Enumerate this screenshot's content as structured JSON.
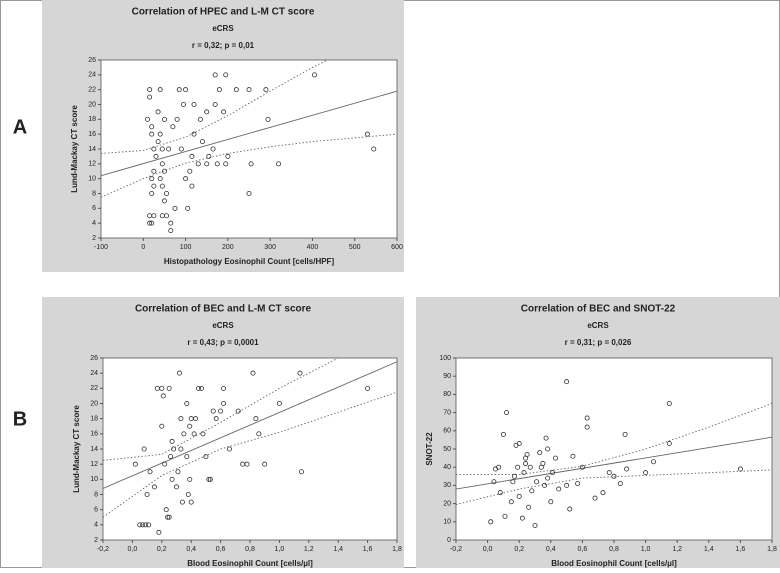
{
  "panel_labels": [
    "A",
    "B"
  ],
  "chart_data": [
    {
      "type": "scatter",
      "title": "Correlation of HPEC and L-M CT score",
      "subtitle": "eCRS",
      "annotation": "r = 0,32; p = 0,01",
      "x_label": "Histopathology Eosinophil Count [cells/HPF]",
      "y_label": "Lund-Mackay CT score",
      "color": "#333333",
      "x": [
        10,
        15,
        15,
        20,
        20,
        25,
        25,
        20,
        25,
        20,
        15,
        15,
        20,
        25,
        30,
        35,
        35,
        40,
        40,
        45,
        45,
        50,
        45,
        50,
        45,
        55,
        55,
        40,
        50,
        60,
        65,
        65,
        70,
        75,
        80,
        85,
        90,
        95,
        100,
        100,
        105,
        110,
        115,
        115,
        120,
        120,
        130,
        135,
        140,
        150,
        150,
        155,
        165,
        170,
        170,
        175,
        180,
        190,
        195,
        195,
        200,
        220,
        250,
        250,
        255,
        290,
        295,
        320,
        405,
        530,
        545
      ],
      "values": [
        18,
        21,
        22,
        17,
        16,
        14,
        11,
        10,
        9,
        8,
        5,
        4,
        4,
        5,
        13,
        15,
        19,
        16,
        22,
        12,
        14,
        18,
        9,
        7,
        5,
        5,
        8,
        10,
        11,
        14,
        3,
        4,
        17,
        6,
        18,
        22,
        14,
        20,
        22,
        10,
        6,
        11,
        9,
        13,
        16,
        20,
        12,
        18,
        15,
        19,
        12,
        13,
        14,
        24,
        20,
        12,
        22,
        19,
        24,
        12,
        13,
        22,
        22,
        8,
        12,
        22,
        18,
        12,
        24,
        16,
        14
      ],
      "fit": {
        "x": [
          -100,
          600
        ],
        "values": [
          10.4,
          21.8
        ]
      },
      "ci_upper": {
        "x": [
          -100,
          0,
          100,
          200,
          300,
          400,
          470
        ],
        "values": [
          13.4,
          13.8,
          15.6,
          18.5,
          21.8,
          25,
          27
        ]
      },
      "ci_lower": {
        "x": [
          -100,
          0,
          100,
          200,
          300,
          400,
          600
        ],
        "values": [
          7.5,
          10,
          12.1,
          13.4,
          14.3,
          15,
          16
        ]
      },
      "xlim": [
        -100,
        600
      ],
      "xticks": [
        -100,
        0,
        100,
        200,
        300,
        400,
        500,
        600
      ],
      "ylim": [
        2,
        26
      ],
      "yticks": [
        2,
        4,
        6,
        8,
        10,
        12,
        14,
        16,
        18,
        20,
        22,
        24,
        26
      ]
    },
    {
      "type": "scatter",
      "title": "Correlation of BEC and L-M CT score",
      "subtitle": "eCRS",
      "annotation": "r = 0,43; p = 0,0001",
      "x_label": "Blood Eosinophil Count [cells/µl]",
      "y_label": "Lund-Mackay CT score",
      "color": "#333333",
      "x": [
        0.02,
        0.05,
        0.07,
        0.09,
        0.11,
        0.08,
        0.1,
        0.12,
        0.15,
        0.17,
        0.18,
        0.2,
        0.2,
        0.21,
        0.22,
        0.23,
        0.24,
        0.25,
        0.26,
        0.27,
        0.27,
        0.25,
        0.28,
        0.3,
        0.31,
        0.32,
        0.33,
        0.33,
        0.34,
        0.35,
        0.37,
        0.37,
        0.38,
        0.39,
        0.39,
        0.4,
        0.4,
        0.42,
        0.43,
        0.45,
        0.47,
        0.48,
        0.5,
        0.52,
        0.53,
        0.55,
        0.57,
        0.6,
        0.62,
        0.62,
        0.66,
        0.72,
        0.75,
        0.78,
        0.82,
        0.84,
        0.86,
        0.9,
        1.0,
        1.14,
        1.15,
        1.6
      ],
      "values": [
        12,
        4,
        4,
        4,
        4,
        14,
        8,
        11,
        9,
        22,
        3,
        22,
        17,
        21,
        12,
        6,
        5,
        5,
        13,
        15,
        10,
        22,
        14,
        9,
        11,
        24,
        18,
        14,
        7,
        16,
        13,
        20,
        8,
        10,
        17,
        18,
        7,
        16,
        18,
        22,
        22,
        16,
        13,
        10,
        10,
        19,
        18,
        19,
        20,
        22,
        14,
        19,
        12,
        12,
        24,
        18,
        16,
        12,
        20,
        24,
        11,
        22
      ],
      "fit": {
        "x": [
          -0.2,
          1.8
        ],
        "values": [
          8.8,
          25.5
        ]
      },
      "ci_upper": {
        "x": [
          -0.2,
          0.2,
          0.6,
          1.0,
          1.4
        ],
        "values": [
          12.5,
          13.3,
          17.5,
          22,
          26
        ]
      },
      "ci_lower": {
        "x": [
          -0.2,
          0.2,
          0.6,
          1.0,
          1.8
        ],
        "values": [
          5,
          10.5,
          14,
          16.2,
          21.5
        ]
      },
      "xlim": [
        -0.2,
        1.8
      ],
      "xticks": [
        {
          "value": -0.2,
          "label": "-0,2"
        },
        {
          "value": 0,
          "label": "0,0"
        },
        {
          "value": 0.2,
          "label": "0,2"
        },
        {
          "value": 0.4,
          "label": "0,4"
        },
        {
          "value": 0.6,
          "label": "0,6"
        },
        {
          "value": 0.8,
          "label": "0,8"
        },
        {
          "value": 1.0,
          "label": "1,0"
        },
        {
          "value": 1.2,
          "label": "1,2"
        },
        {
          "value": 1.4,
          "label": "1,4"
        },
        {
          "value": 1.6,
          "label": "1,6"
        },
        {
          "value": 1.8,
          "label": "1,8"
        }
      ],
      "ylim": [
        2,
        26
      ],
      "yticks": [
        2,
        4,
        6,
        8,
        10,
        12,
        14,
        16,
        18,
        20,
        22,
        24,
        26
      ]
    },
    {
      "type": "scatter",
      "title": "Correlation of BEC and SNOT-22",
      "subtitle": "eCRS",
      "annotation": "r = 0,31; p = 0,026",
      "x_label": "Blood Eosinophil Count [cells/µl]",
      "y_label": "SNOT-22",
      "color": "#333333",
      "x": [
        0.02,
        0.04,
        0.05,
        0.07,
        0.08,
        0.1,
        0.12,
        0.11,
        0.15,
        0.16,
        0.17,
        0.18,
        0.19,
        0.2,
        0.2,
        0.22,
        0.23,
        0.24,
        0.24,
        0.25,
        0.26,
        0.27,
        0.28,
        0.3,
        0.31,
        0.33,
        0.34,
        0.35,
        0.36,
        0.37,
        0.38,
        0.38,
        0.4,
        0.41,
        0.43,
        0.45,
        0.5,
        0.5,
        0.52,
        0.54,
        0.57,
        0.6,
        0.63,
        0.63,
        0.68,
        0.73,
        0.77,
        0.8,
        0.84,
        0.87,
        0.88,
        1.0,
        1.05,
        1.15,
        1.15,
        1.6
      ],
      "values": [
        10,
        32,
        39,
        40,
        26,
        58,
        70,
        13,
        21,
        32,
        35,
        52,
        40,
        53,
        24,
        12,
        37,
        45,
        42,
        47,
        18,
        40,
        27,
        8,
        32,
        48,
        40,
        42,
        30,
        56,
        50,
        34,
        21,
        37,
        45,
        28,
        87,
        30,
        17,
        46,
        31,
        40,
        62,
        67,
        23,
        26,
        37,
        35,
        31,
        58,
        39,
        37,
        43,
        53,
        75,
        39
      ],
      "fit": {
        "x": [
          -0.2,
          1.8
        ],
        "values": [
          28,
          56.5
        ]
      },
      "ci_upper": {
        "x": [
          -0.2,
          0.2,
          0.6,
          1.0,
          1.4,
          1.8
        ],
        "values": [
          36,
          36,
          40.5,
          50,
          62,
          75
        ]
      },
      "ci_lower": {
        "x": [
          -0.2,
          0.2,
          0.6,
          1.0,
          1.8
        ],
        "values": [
          19.5,
          28,
          34,
          35.5,
          38.5
        ]
      },
      "xlim": [
        -0.2,
        1.8
      ],
      "xticks": [
        {
          "value": -0.2,
          "label": "-0,2"
        },
        {
          "value": 0,
          "label": "0,0"
        },
        {
          "value": 0.2,
          "label": "0,2"
        },
        {
          "value": 0.4,
          "label": "0,4"
        },
        {
          "value": 0.6,
          "label": "0,6"
        },
        {
          "value": 0.8,
          "label": "0,8"
        },
        {
          "value": 1.0,
          "label": "1,0"
        },
        {
          "value": 1.2,
          "label": "1,2"
        },
        {
          "value": 1.4,
          "label": "1,4"
        },
        {
          "value": 1.6,
          "label": "1,6"
        },
        {
          "value": 1.8,
          "label": "1,8"
        }
      ],
      "ylim": [
        0,
        100
      ],
      "yticks": [
        0,
        10,
        20,
        30,
        40,
        50,
        60,
        70,
        80,
        90,
        100
      ]
    }
  ]
}
